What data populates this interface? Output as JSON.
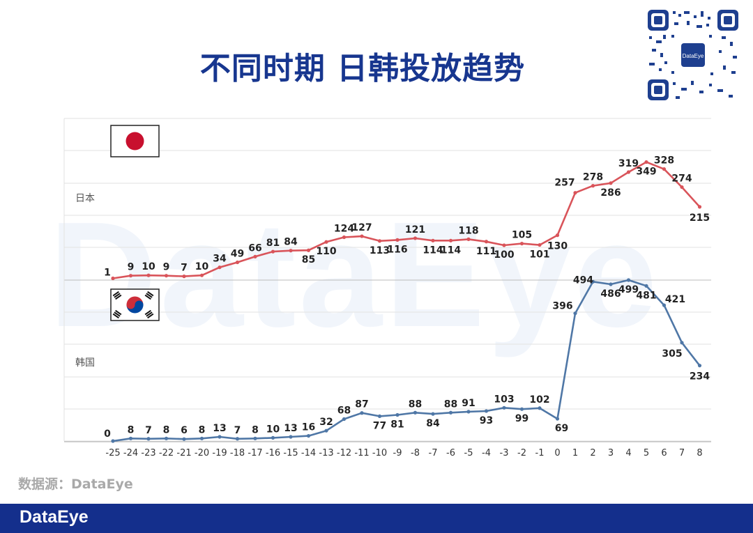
{
  "title": "不同时期 日韩投放趋势",
  "source": "数据源：DataEye",
  "footer_logo": "DataEye",
  "qr_label": "DataEye",
  "watermark": "DataEye",
  "colors": {
    "japan": "#d9545a",
    "korea": "#4f77a6",
    "title": "#17368f",
    "footer": "#142f8c"
  },
  "chart_data": [
    {
      "type": "line",
      "label": "日本",
      "flag": "japan-flag",
      "x": [
        -25,
        -24,
        -23,
        -22,
        -21,
        -20,
        -19,
        -18,
        -17,
        -16,
        -15,
        -14,
        -13,
        -12,
        -11,
        -10,
        -9,
        -8,
        -7,
        -6,
        -5,
        -4,
        -3,
        -2,
        -1,
        0,
        1,
        2,
        3,
        4,
        5,
        6,
        7,
        8
      ],
      "values": [
        1,
        9,
        10,
        9,
        7,
        10,
        34,
        49,
        66,
        81,
        84,
        85,
        110,
        124,
        127,
        113,
        116,
        121,
        114,
        114,
        118,
        111,
        100,
        105,
        101,
        130,
        257,
        278,
        286,
        319,
        349,
        328,
        274,
        215
      ]
    },
    {
      "type": "line",
      "label": "韩国",
      "flag": "korea-flag",
      "x": [
        -25,
        -24,
        -23,
        -22,
        -21,
        -20,
        -19,
        -18,
        -17,
        -16,
        -15,
        -14,
        -13,
        -12,
        -11,
        -10,
        -9,
        -8,
        -7,
        -6,
        -5,
        -4,
        -3,
        -2,
        -1,
        0,
        1,
        2,
        3,
        4,
        5,
        6,
        7,
        8
      ],
      "values": [
        0,
        8,
        7,
        8,
        6,
        8,
        13,
        7,
        8,
        10,
        13,
        16,
        32,
        68,
        87,
        77,
        81,
        88,
        84,
        88,
        91,
        93,
        103,
        99,
        102,
        69,
        396,
        494,
        486,
        499,
        481,
        421,
        305,
        234
      ]
    }
  ]
}
